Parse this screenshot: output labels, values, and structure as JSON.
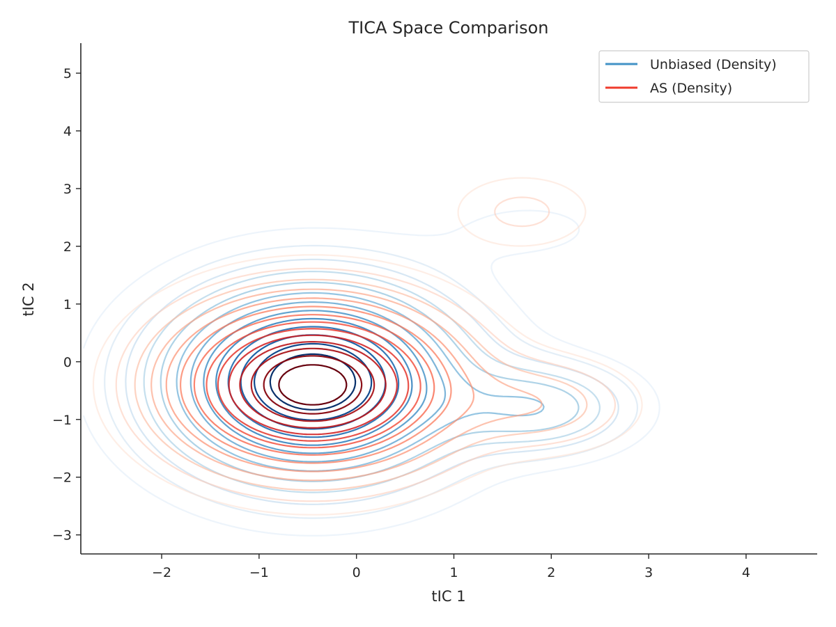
{
  "chart_data": {
    "type": "contour",
    "title": "TICA Space Comparison",
    "xlabel": "tIC 1",
    "ylabel": "tIC 2",
    "xlim": [
      -2.83,
      4.73
    ],
    "ylim": [
      -3.33,
      5.52
    ],
    "xticks": [
      -2,
      -1,
      0,
      1,
      2,
      3,
      4
    ],
    "yticks": [
      -3,
      -2,
      -1,
      0,
      1,
      2,
      3,
      4,
      5
    ],
    "xtick_labels": [
      "−2",
      "−1",
      "0",
      "1",
      "2",
      "3",
      "4"
    ],
    "ytick_labels": [
      "−3",
      "−2",
      "−1",
      "0",
      "1",
      "2",
      "3",
      "4",
      "5"
    ],
    "grid": false,
    "legend_position": "top-right",
    "series": [
      {
        "name": "Unbiased (Density)",
        "color": "#4292c6",
        "colormap": "Blues",
        "modes": [
          {
            "center": [
              -0.45,
              -0.35
            ],
            "sx": 0.95,
            "sy": 1.05,
            "weight": 1.0
          },
          {
            "center": [
              1.9,
              -0.8
            ],
            "sx": 0.6,
            "sy": 0.5,
            "weight": 0.3
          },
          {
            "center": [
              1.8,
              2.3
            ],
            "sx": 0.7,
            "sy": 0.45,
            "weight": 0.05
          }
        ]
      },
      {
        "name": "AS (Density)",
        "color": "#ef3b2c",
        "colormap": "Reds",
        "modes": [
          {
            "center": [
              -0.45,
              -0.4
            ],
            "sx": 0.85,
            "sy": 0.85,
            "weight": 1.0
          },
          {
            "center": [
              1.9,
              -0.75
            ],
            "sx": 0.6,
            "sy": 0.5,
            "weight": 0.13
          },
          {
            "center": [
              1.7,
              2.6
            ],
            "sx": 0.5,
            "sy": 0.45,
            "weight": 0.07
          }
        ]
      }
    ]
  }
}
